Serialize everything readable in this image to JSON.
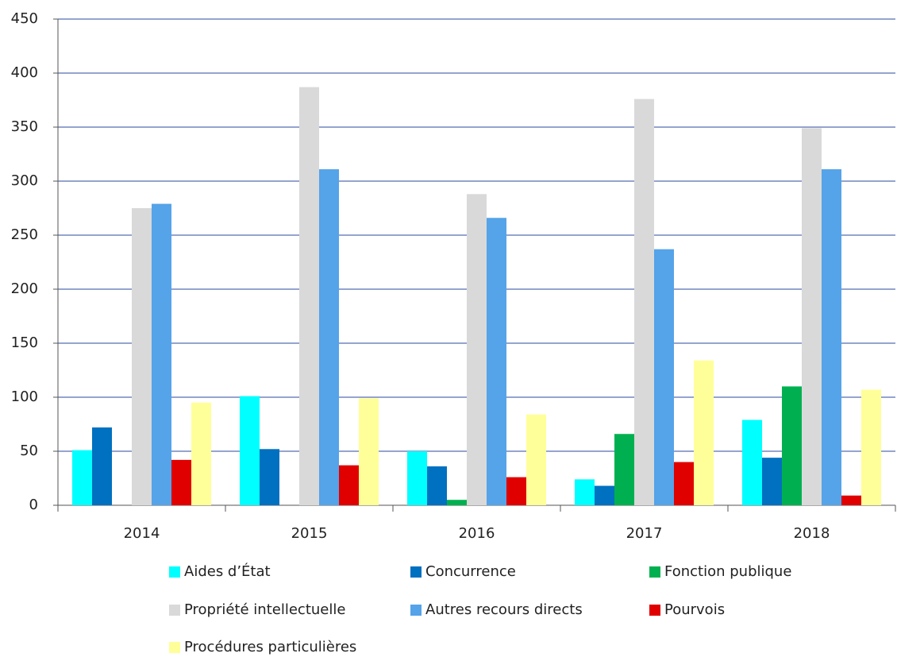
{
  "chart_data": {
    "type": "bar",
    "categories": [
      "2014",
      "2015",
      "2016",
      "2017",
      "2018"
    ],
    "series": [
      {
        "name": "Aides d’État",
        "color": "#00ffff",
        "values": [
          51,
          101,
          50,
          24,
          79
        ]
      },
      {
        "name": "Concurrence",
        "color": "#0070c0",
        "values": [
          72,
          52,
          36,
          18,
          44
        ]
      },
      {
        "name": "Fonction publique",
        "color": "#00b050",
        "values": [
          0,
          0,
          5,
          66,
          110
        ]
      },
      {
        "name": "Propriété intellectuelle",
        "color": "#d9d9d9",
        "values": [
          275,
          387,
          288,
          376,
          349
        ]
      },
      {
        "name": "Autres recours directs",
        "color": "#55a3e8",
        "values": [
          279,
          311,
          266,
          237,
          311
        ]
      },
      {
        "name": "Pourvois",
        "color": "#e00000",
        "values": [
          42,
          37,
          26,
          40,
          9
        ]
      },
      {
        "name": "Procédures particulières",
        "color": "#ffff99",
        "values": [
          95,
          99,
          84,
          134,
          107
        ]
      }
    ],
    "ylim": [
      0,
      450
    ],
    "yticks": [
      0,
      50,
      100,
      150,
      200,
      250,
      300,
      350,
      400,
      450
    ],
    "grid": true,
    "legend": "bottom"
  }
}
